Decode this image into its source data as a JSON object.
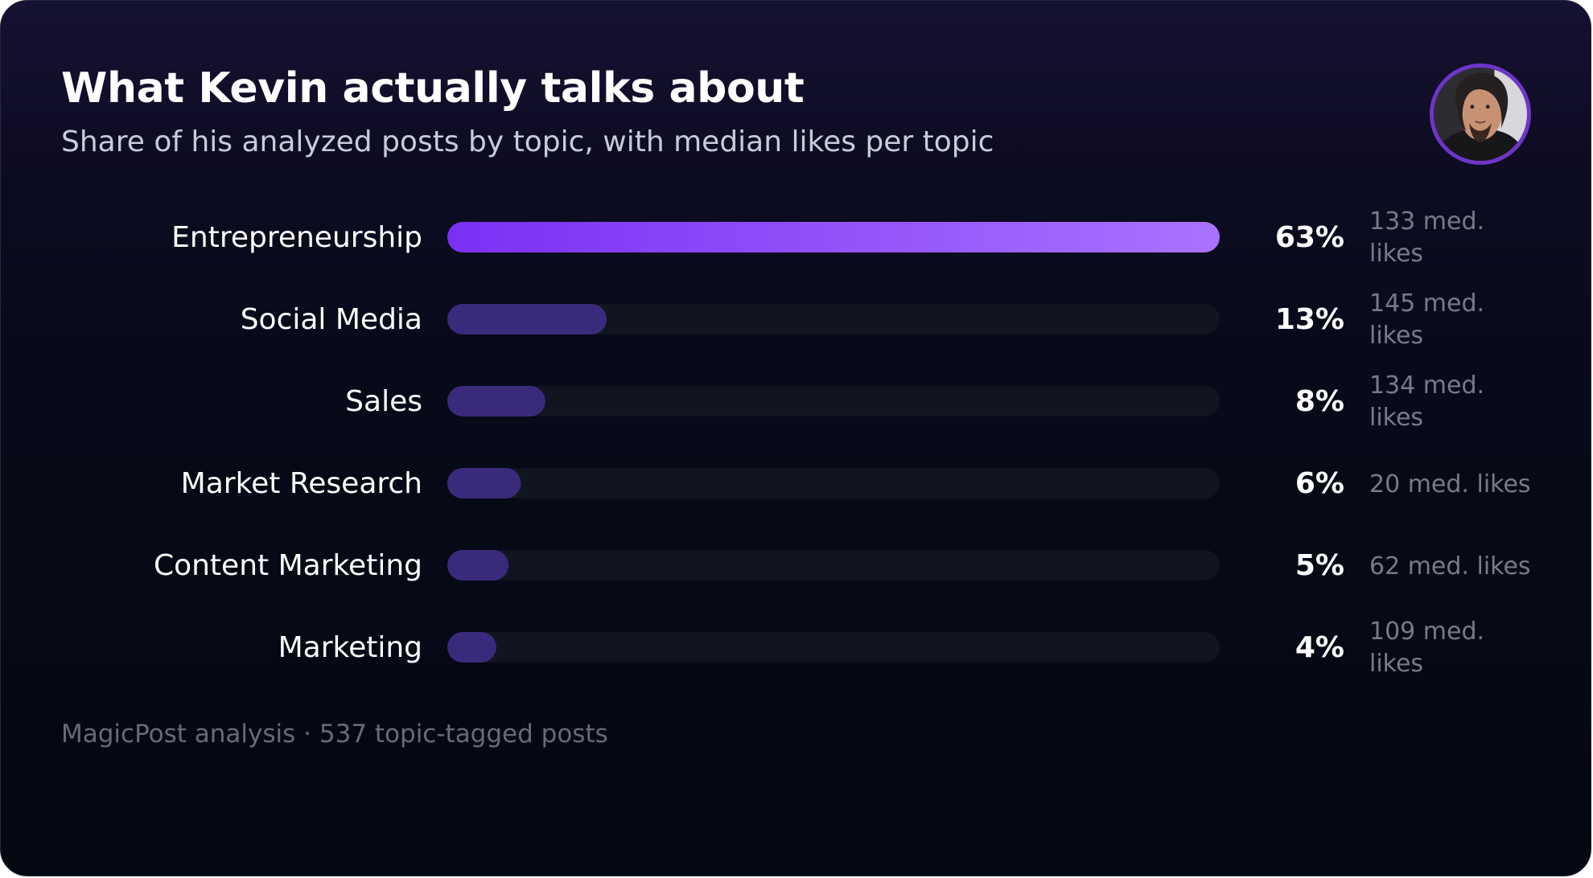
{
  "header": {
    "title": "What Kevin actually talks about",
    "subtitle": "Share of his analyzed posts by topic, with median likes per topic"
  },
  "footer": {
    "text": "MagicPost analysis · 537 topic-tagged posts"
  },
  "avatar": {
    "icon": "person-portrait-icon"
  },
  "colors": {
    "primary_bar_start": "#7b30f4",
    "primary_bar_end": "#aa72ff",
    "secondary_bar": "#3a2a7c",
    "track": "#111520",
    "label": "#ffffff",
    "muted": "#777b88"
  },
  "chart_data": {
    "type": "bar",
    "orientation": "horizontal",
    "categories": [
      "Entrepreneurship",
      "Social Media",
      "Sales",
      "Market Research",
      "Content Marketing",
      "Marketing"
    ],
    "series": [
      {
        "values": [
          63,
          13,
          8,
          6,
          5,
          4
        ]
      }
    ],
    "value_labels": [
      "63%",
      "13%",
      "8%",
      "6%",
      "5%",
      "4%"
    ],
    "median_likes": [
      133,
      145,
      134,
      20,
      62,
      109
    ],
    "median_likes_labels": [
      [
        "133 med.",
        "likes"
      ],
      [
        "145 med.",
        "likes"
      ],
      [
        "134 med.",
        "likes"
      ],
      [
        "20 med. likes"
      ],
      [
        "62 med. likes"
      ],
      [
        "109 med.",
        "likes"
      ]
    ],
    "xlim": [
      0,
      63
    ],
    "grid": false,
    "legend": "none"
  }
}
